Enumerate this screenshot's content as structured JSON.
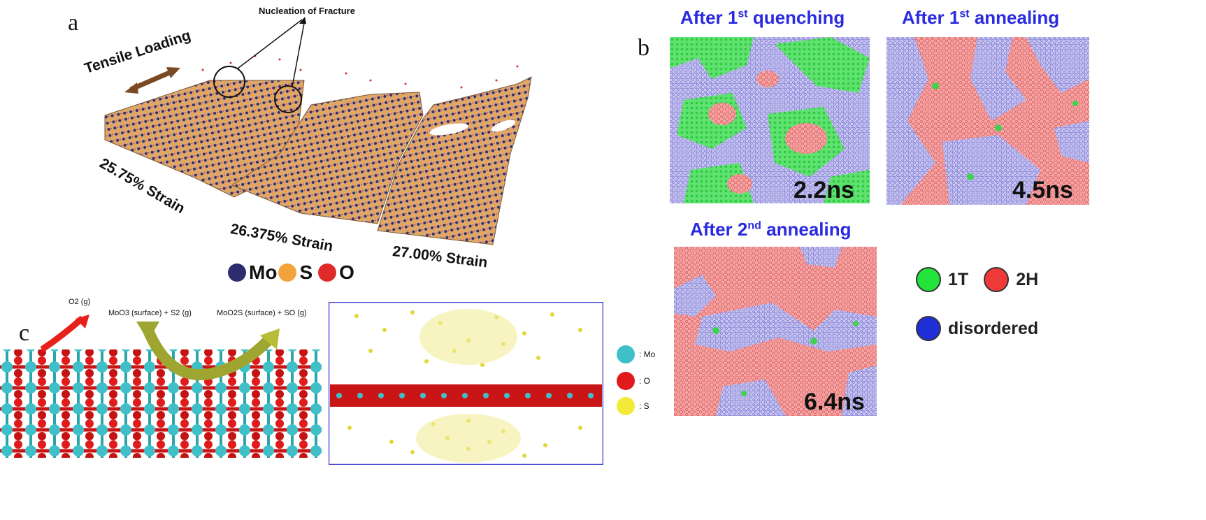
{
  "panel_a": {
    "letter": "a",
    "nucleation_label": "Nucleation of Fracture",
    "tensile_label": "Tensile Loading",
    "strains": [
      "25.75% Strain",
      "26.375% Strain",
      "27.00% Strain"
    ],
    "legend": [
      {
        "label": "Mo",
        "color": "#2b2d6e"
      },
      {
        "label": "S",
        "color": "#f2a33a"
      },
      {
        "label": "O",
        "color": "#e02a2a"
      }
    ]
  },
  "panel_b": {
    "letter": "b",
    "maps": [
      {
        "title_pre": "After 1",
        "title_sup": "st",
        "title_post": " quenching",
        "time": "2.2ns"
      },
      {
        "title_pre": "After 1",
        "title_sup": "st",
        "title_post": " annealing",
        "time": "4.5ns"
      },
      {
        "title_pre": "After 2",
        "title_sup": "nd",
        "title_post": " annealing",
        "time": "6.4ns"
      }
    ],
    "legend": [
      {
        "label": "1T",
        "color": "#22e33a"
      },
      {
        "label": "2H",
        "color": "#f03a3a"
      },
      {
        "label": "disordered",
        "color": "#1f2fd8"
      }
    ]
  },
  "panel_c": {
    "letter": "c",
    "o2_label": "O2 (g)",
    "reaction_left": "MoO3 (surface) + S2 (g)",
    "reaction_right": "MoO2S (surface) + SO (g)",
    "legend": [
      {
        "label": ": Mo",
        "color": "#3fc0c8"
      },
      {
        "label": ": O",
        "color": "#e01b1b"
      },
      {
        "label": ": S",
        "color": "#f2ea38"
      }
    ]
  }
}
